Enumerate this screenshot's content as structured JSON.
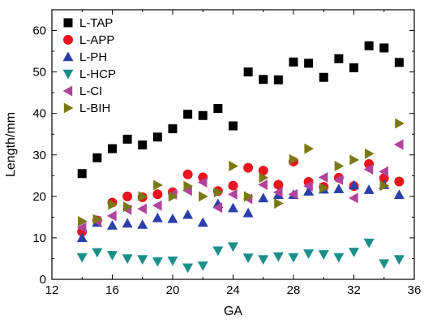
{
  "chart_data": {
    "type": "scatter",
    "xlabel": "GA",
    "ylabel": "Length/mm",
    "xlim": [
      12,
      36
    ],
    "ylim": [
      0,
      65
    ],
    "xticks": [
      12,
      16,
      20,
      24,
      28,
      32,
      36
    ],
    "yticks": [
      0,
      10,
      20,
      30,
      40,
      50,
      60
    ],
    "grid": false,
    "legend_position": "top-left",
    "series": [
      {
        "name": "L-TAP",
        "marker": "square",
        "color": "#000000",
        "points": [
          [
            14,
            25.5
          ],
          [
            15,
            29.3
          ],
          [
            16,
            31.5
          ],
          [
            17,
            33.8
          ],
          [
            18,
            32.4
          ],
          [
            19,
            34.3
          ],
          [
            20,
            36.3
          ],
          [
            21,
            39.8
          ],
          [
            22,
            39.5
          ],
          [
            23,
            41.2
          ],
          [
            24,
            37.0
          ],
          [
            25,
            50.0
          ],
          [
            26,
            48.2
          ],
          [
            27,
            48.1
          ],
          [
            28,
            52.4
          ],
          [
            29,
            52.1
          ],
          [
            30,
            48.7
          ],
          [
            31,
            53.2
          ],
          [
            32,
            51.0
          ],
          [
            33,
            56.3
          ],
          [
            34,
            55.8
          ],
          [
            35,
            52.3
          ]
        ]
      },
      {
        "name": "L-APP",
        "marker": "circle",
        "color": "#e8141e",
        "points": [
          [
            14,
            11.5
          ],
          [
            15,
            14.2
          ],
          [
            16,
            18.5
          ],
          [
            17,
            20.0
          ],
          [
            18,
            19.8
          ],
          [
            19,
            20.5
          ],
          [
            20,
            21.0
          ],
          [
            21,
            25.3
          ],
          [
            22,
            24.6
          ],
          [
            23,
            21.3
          ],
          [
            24,
            22.6
          ],
          [
            25,
            26.9
          ],
          [
            26,
            26.2
          ],
          [
            27,
            22.8
          ],
          [
            28,
            28.4
          ],
          [
            29,
            23.5
          ],
          [
            30,
            22.3
          ],
          [
            31,
            24.5
          ],
          [
            32,
            22.5
          ],
          [
            33,
            27.8
          ],
          [
            34,
            24.4
          ],
          [
            35,
            23.6
          ]
        ]
      },
      {
        "name": "L-PH",
        "marker": "triangle-up",
        "color": "#2a3fa8",
        "points": [
          [
            14,
            10.0
          ],
          [
            15,
            13.7
          ],
          [
            16,
            13.0
          ],
          [
            17,
            13.5
          ],
          [
            18,
            13.2
          ],
          [
            19,
            14.8
          ],
          [
            20,
            14.6
          ],
          [
            21,
            15.6
          ],
          [
            22,
            13.7
          ],
          [
            23,
            18.2
          ],
          [
            24,
            17.2
          ],
          [
            25,
            16.0
          ],
          [
            26,
            19.6
          ],
          [
            27,
            20.4
          ],
          [
            28,
            20.4
          ],
          [
            29,
            21.2
          ],
          [
            30,
            21.7
          ],
          [
            31,
            21.8
          ],
          [
            32,
            22.7
          ],
          [
            33,
            21.6
          ],
          [
            34,
            22.8
          ],
          [
            35,
            20.4
          ]
        ]
      },
      {
        "name": "L-HCP",
        "marker": "triangle-down",
        "color": "#1a8f8a",
        "points": [
          [
            14,
            5.3
          ],
          [
            15,
            6.5
          ],
          [
            16,
            5.8
          ],
          [
            17,
            5.0
          ],
          [
            18,
            4.8
          ],
          [
            19,
            4.3
          ],
          [
            20,
            4.5
          ],
          [
            21,
            2.8
          ],
          [
            22,
            3.3
          ],
          [
            23,
            6.9
          ],
          [
            24,
            7.9
          ],
          [
            25,
            5.2
          ],
          [
            26,
            4.8
          ],
          [
            27,
            5.5
          ],
          [
            28,
            5.3
          ],
          [
            29,
            6.2
          ],
          [
            30,
            6.0
          ],
          [
            31,
            5.3
          ],
          [
            32,
            6.6
          ],
          [
            33,
            8.8
          ],
          [
            34,
            3.8
          ],
          [
            35,
            4.8
          ]
        ]
      },
      {
        "name": "L-CI",
        "marker": "triangle-left",
        "color": "#b0439b",
        "points": [
          [
            14,
            12.5
          ],
          [
            15,
            14.0
          ],
          [
            16,
            15.3
          ],
          [
            17,
            16.8
          ],
          [
            18,
            17.0
          ],
          [
            19,
            17.8
          ],
          [
            20,
            20.5
          ],
          [
            21,
            21.4
          ],
          [
            22,
            23.4
          ],
          [
            23,
            17.3
          ],
          [
            24,
            20.5
          ],
          [
            25,
            19.4
          ],
          [
            26,
            22.8
          ],
          [
            27,
            21.0
          ],
          [
            28,
            20.5
          ],
          [
            29,
            22.5
          ],
          [
            30,
            24.6
          ],
          [
            31,
            24.0
          ],
          [
            32,
            19.6
          ],
          [
            33,
            26.5
          ],
          [
            34,
            26.0
          ],
          [
            35,
            32.5
          ]
        ]
      },
      {
        "name": "L-BIH",
        "marker": "triangle-right",
        "color": "#7a7a14",
        "points": [
          [
            14,
            14.0
          ],
          [
            15,
            14.5
          ],
          [
            16,
            18.0
          ],
          [
            17,
            17.5
          ],
          [
            18,
            20.0
          ],
          [
            19,
            22.7
          ],
          [
            20,
            20.0
          ],
          [
            21,
            22.5
          ],
          [
            22,
            20.0
          ],
          [
            23,
            21.0
          ],
          [
            24,
            27.3
          ],
          [
            25,
            20.0
          ],
          [
            26,
            24.5
          ],
          [
            27,
            18.3
          ],
          [
            28,
            28.9
          ],
          [
            29,
            31.5
          ],
          [
            30,
            22.0
          ],
          [
            31,
            27.3
          ],
          [
            32,
            28.8
          ],
          [
            33,
            30.3
          ],
          [
            34,
            22.6
          ],
          [
            35,
            37.6
          ]
        ]
      }
    ]
  }
}
